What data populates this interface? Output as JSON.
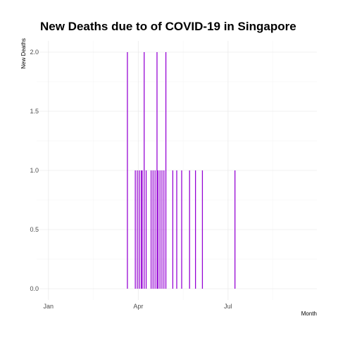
{
  "chart_data": {
    "type": "bar",
    "title": "New Deaths due to of COVID-19 in Singapore",
    "xlabel": "Month",
    "ylabel": "New Deaths",
    "x_ticks": [
      "Jan",
      "Apr",
      "Jul"
    ],
    "x_tick_dates": [
      "2020-01-01",
      "2020-04-01",
      "2020-07-01"
    ],
    "xlim": [
      "2019-12-20",
      "2020-09-29"
    ],
    "y_ticks": [
      "0.0",
      "0.5",
      "1.0",
      "1.5",
      "2.0"
    ],
    "ylim": [
      0,
      2
    ],
    "grid": true,
    "bar_color": "#9400D3",
    "x": [
      "2020-03-21",
      "2020-03-29",
      "2020-03-31",
      "2020-04-02",
      "2020-04-04",
      "2020-04-05",
      "2020-04-07",
      "2020-04-09",
      "2020-04-14",
      "2020-04-16",
      "2020-04-18",
      "2020-04-20",
      "2020-04-21",
      "2020-04-23",
      "2020-04-25",
      "2020-04-27",
      "2020-04-29",
      "2020-05-06",
      "2020-05-10",
      "2020-05-15",
      "2020-05-23",
      "2020-05-29",
      "2020-06-05",
      "2020-07-08"
    ],
    "values": [
      2,
      1,
      1,
      1,
      1,
      1,
      2,
      1,
      1,
      1,
      1,
      2,
      1,
      1,
      1,
      1,
      2,
      1,
      1,
      1,
      1,
      1,
      1,
      1
    ]
  }
}
